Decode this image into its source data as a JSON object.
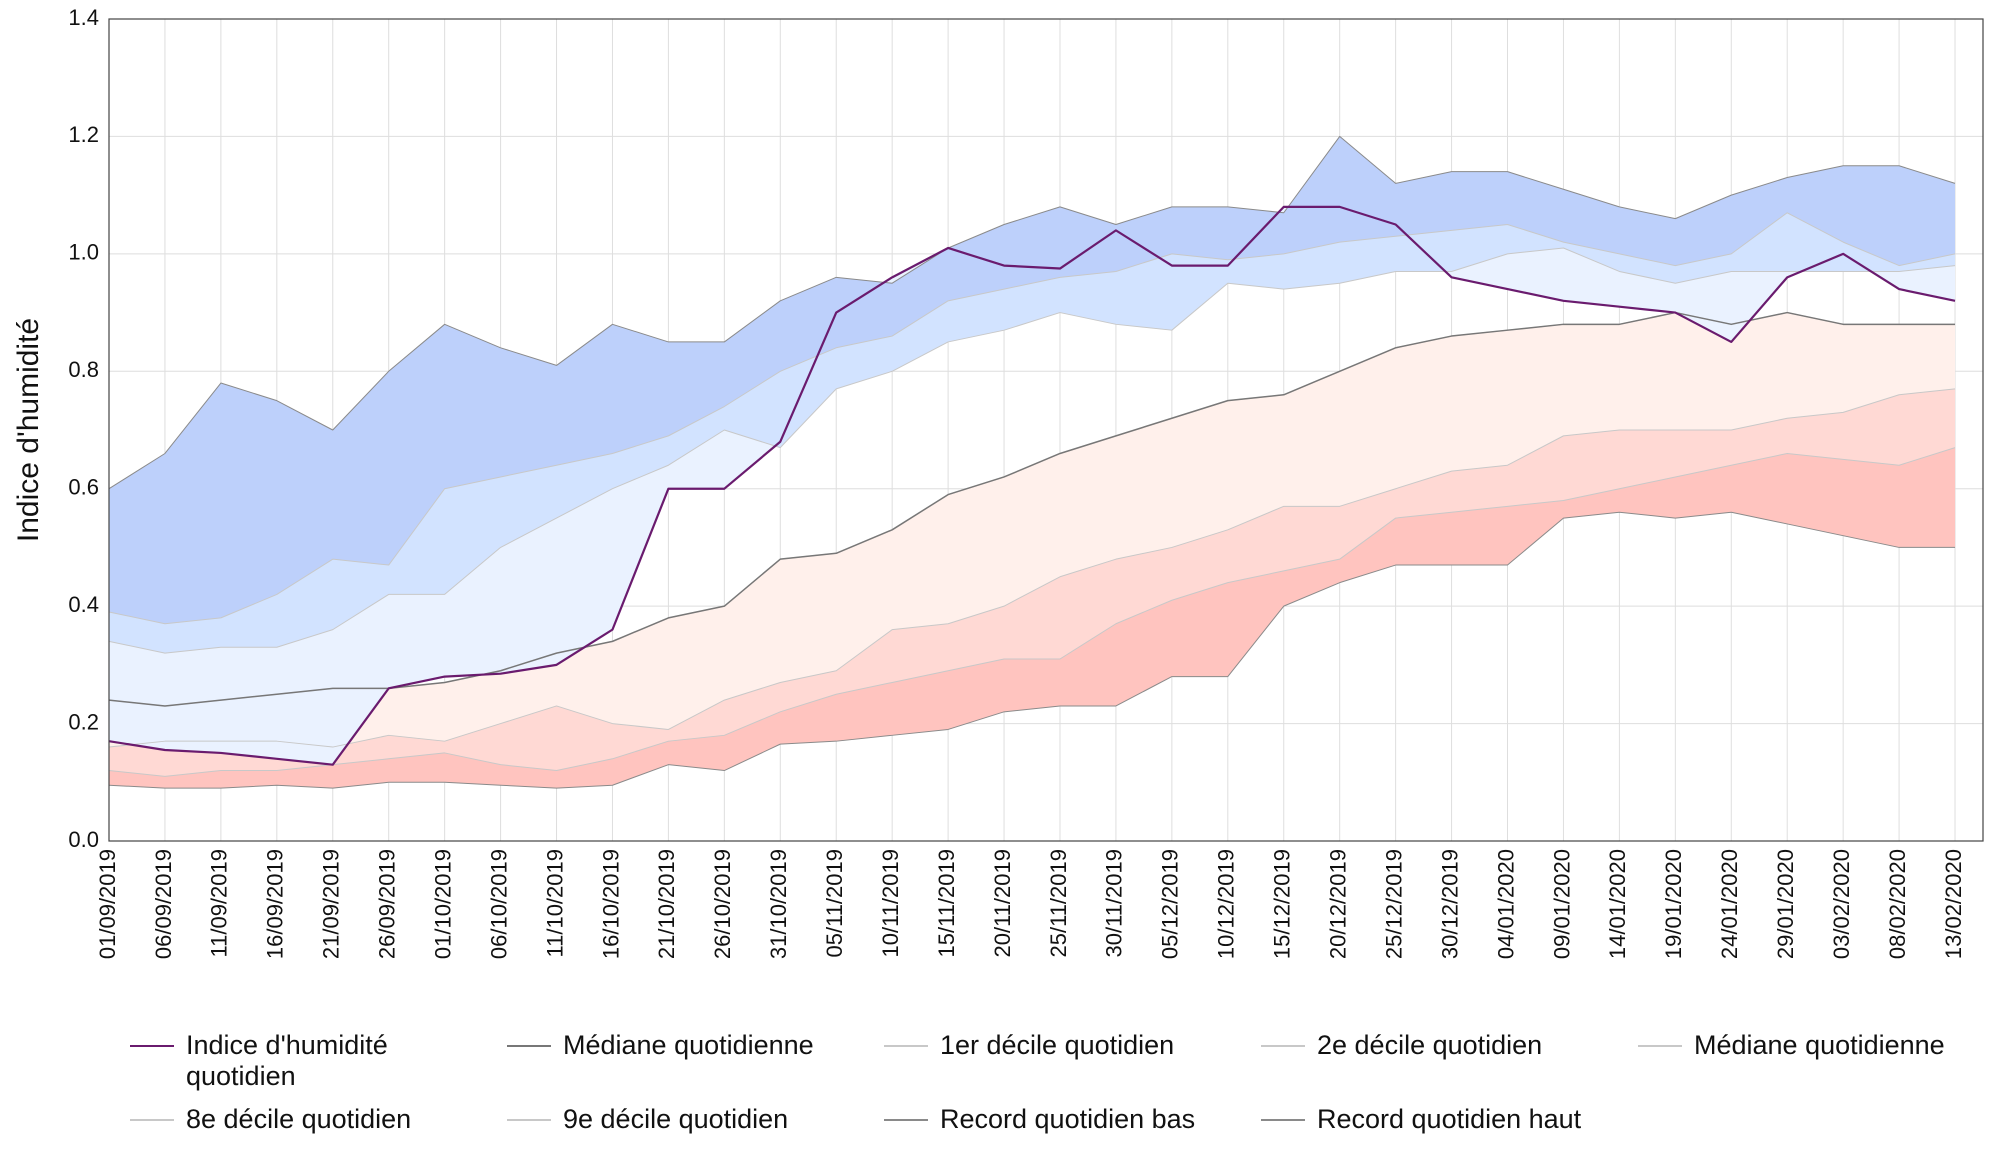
{
  "chart_data": {
    "type": "band-line",
    "y_label": "Indice d'humidité",
    "categories": [
      "01/09/2019",
      "06/09/2019",
      "11/09/2019",
      "16/09/2019",
      "21/09/2019",
      "26/09/2019",
      "01/10/2019",
      "06/10/2019",
      "11/10/2019",
      "16/10/2019",
      "21/10/2019",
      "26/10/2019",
      "31/10/2019",
      "05/11/2019",
      "10/11/2019",
      "15/11/2019",
      "20/11/2019",
      "25/11/2019",
      "30/11/2019",
      "05/12/2019",
      "10/12/2019",
      "15/12/2019",
      "20/12/2019",
      "25/12/2019",
      "30/12/2019",
      "04/01/2020",
      "09/01/2020",
      "14/01/2020",
      "19/01/2020",
      "24/01/2020",
      "29/01/2020",
      "03/02/2020",
      "08/02/2020",
      "13/02/2020"
    ],
    "ylim": [
      0,
      1.4
    ],
    "yticks": [
      {
        "value": 0,
        "label": "0.0"
      },
      0.2,
      0.4,
      0.6,
      0.8,
      {
        "value": 1,
        "label": "1.0"
      },
      1.2,
      1.4
    ],
    "grid": true,
    "series": [
      {
        "name": "Indice d'humidité quotidien",
        "color": "#6a1b6e",
        "width": 2.2,
        "values": [
          0.17,
          0.155,
          0.15,
          0.14,
          0.13,
          0.26,
          0.28,
          0.285,
          0.3,
          0.36,
          0.6,
          0.6,
          0.68,
          0.9,
          0.96,
          1.01,
          0.98,
          0.975,
          1.04,
          0.98,
          0.98,
          1.08,
          1.08,
          1.05,
          0.96,
          0.94,
          0.92,
          0.91,
          0.9,
          0.85,
          0.96,
          1.0,
          0.94,
          0.92
        ]
      },
      {
        "name": "Médiane quotidienne",
        "color": "#777777",
        "width": 1.5,
        "values": [
          0.24,
          0.23,
          0.24,
          0.25,
          0.26,
          0.26,
          0.27,
          0.29,
          0.32,
          0.34,
          0.38,
          0.4,
          0.48,
          0.49,
          0.53,
          0.59,
          0.62,
          0.66,
          0.69,
          0.72,
          0.75,
          0.76,
          0.8,
          0.84,
          0.86,
          0.87,
          0.88,
          0.88,
          0.9,
          0.88,
          0.9,
          0.88,
          0.88,
          0.88
        ]
      },
      {
        "name": "1er décile quotidien",
        "color": "#c8c8c8",
        "fill": "#ffc4bf",
        "width": 1,
        "values": [
          0.12,
          0.11,
          0.12,
          0.12,
          0.13,
          0.14,
          0.15,
          0.13,
          0.12,
          0.14,
          0.17,
          0.18,
          0.22,
          0.25,
          0.27,
          0.29,
          0.31,
          0.31,
          0.37,
          0.41,
          0.44,
          0.46,
          0.48,
          0.55,
          0.56,
          0.57,
          0.58,
          0.6,
          0.62,
          0.64,
          0.66,
          0.65,
          0.64,
          0.67
        ]
      },
      {
        "name": "2e décile quotidien",
        "color": "#c8c8c8",
        "fill": "#ffd9d4",
        "width": 1,
        "values": [
          0.16,
          0.17,
          0.17,
          0.17,
          0.16,
          0.18,
          0.17,
          0.2,
          0.23,
          0.2,
          0.19,
          0.24,
          0.27,
          0.29,
          0.36,
          0.37,
          0.4,
          0.45,
          0.48,
          0.5,
          0.53,
          0.57,
          0.57,
          0.6,
          0.63,
          0.64,
          0.69,
          0.7,
          0.7,
          0.7,
          0.72,
          0.73,
          0.76,
          0.77
        ]
      },
      {
        "name": "Médiane quotidienne",
        "color": "#c8c8c8",
        "fill": "#fff0eb",
        "width": 1,
        "values": [
          0.24,
          0.23,
          0.24,
          0.25,
          0.26,
          0.26,
          0.27,
          0.29,
          0.32,
          0.34,
          0.38,
          0.4,
          0.48,
          0.49,
          0.53,
          0.59,
          0.62,
          0.66,
          0.69,
          0.72,
          0.75,
          0.76,
          0.8,
          0.84,
          0.86,
          0.87,
          0.88,
          0.88,
          0.9,
          0.88,
          0.9,
          0.88,
          0.88,
          0.88
        ]
      },
      {
        "name": "8e décile quotidien",
        "color": "#c8c8c8",
        "fill": "#eaf2ff",
        "width": 1,
        "values": [
          0.34,
          0.32,
          0.33,
          0.33,
          0.36,
          0.42,
          0.42,
          0.5,
          0.55,
          0.6,
          0.64,
          0.7,
          0.67,
          0.77,
          0.8,
          0.85,
          0.87,
          0.9,
          0.88,
          0.87,
          0.95,
          0.94,
          0.95,
          0.97,
          0.97,
          1.0,
          1.01,
          0.97,
          0.95,
          0.97,
          0.97,
          0.97,
          0.97,
          0.98
        ]
      },
      {
        "name": "9e décile quotidien",
        "color": "#c8c8c8",
        "fill": "#d2e3ff",
        "width": 1,
        "values": [
          0.39,
          0.37,
          0.38,
          0.42,
          0.48,
          0.47,
          0.6,
          0.62,
          0.64,
          0.66,
          0.69,
          0.74,
          0.8,
          0.84,
          0.86,
          0.92,
          0.94,
          0.96,
          0.97,
          1.0,
          0.99,
          1.0,
          1.02,
          1.03,
          1.04,
          1.05,
          1.02,
          1.0,
          0.98,
          1.0,
          1.07,
          1.02,
          0.98,
          1.0
        ]
      },
      {
        "name": "Record quotidien bas",
        "color": "#8a8a8a",
        "width": 1,
        "values": [
          0.095,
          0.09,
          0.09,
          0.095,
          0.09,
          0.1,
          0.1,
          0.095,
          0.09,
          0.095,
          0.13,
          0.12,
          0.165,
          0.17,
          0.18,
          0.19,
          0.22,
          0.23,
          0.23,
          0.28,
          0.28,
          0.4,
          0.44,
          0.47,
          0.47,
          0.47,
          0.55,
          0.56,
          0.55,
          0.56,
          0.54,
          0.52,
          0.5,
          0.5
        ]
      },
      {
        "name": "Record quotidien haut",
        "color": "#8a8a8a",
        "fill": "#bdd0fb",
        "width": 1,
        "values": [
          0.6,
          0.66,
          0.78,
          0.75,
          0.7,
          0.8,
          0.88,
          0.84,
          0.81,
          0.88,
          0.85,
          0.85,
          0.92,
          0.96,
          0.95,
          1.01,
          1.05,
          1.08,
          1.05,
          1.08,
          1.08,
          1.07,
          1.2,
          1.12,
          1.14,
          1.14,
          1.11,
          1.08,
          1.06,
          1.1,
          1.13,
          1.15,
          1.15,
          1.12
        ]
      }
    ]
  }
}
